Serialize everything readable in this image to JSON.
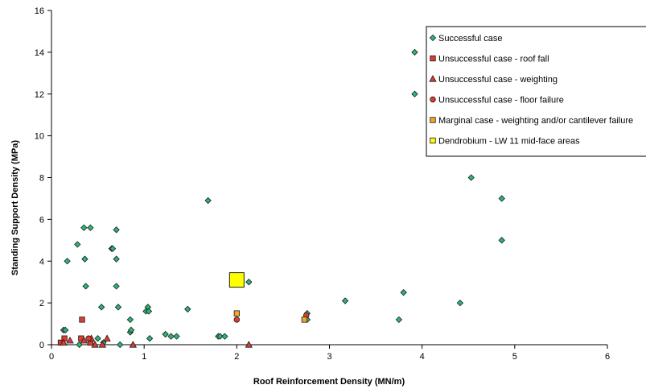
{
  "chart_data": {
    "type": "scatter",
    "title": "",
    "xlabel": "Roof Reinforcement Density (MN/m)",
    "ylabel": "Standing Support Density (MPa)",
    "xlim": [
      0,
      6
    ],
    "ylim": [
      0,
      16
    ],
    "x_ticks": [
      "0",
      "1",
      "2",
      "3",
      "4",
      "5",
      "6"
    ],
    "y_ticks": [
      "0",
      "2",
      "4",
      "6",
      "8",
      "10",
      "12",
      "14",
      "16"
    ],
    "grid": false,
    "legend_position": "top-right",
    "series": [
      {
        "name": "Successful case",
        "marker": "diamond",
        "color": "#2bb673",
        "points": [
          [
            0.13,
            0.7
          ],
          [
            0.15,
            0.7
          ],
          [
            0.17,
            4.0
          ],
          [
            0.28,
            4.8
          ],
          [
            0.3,
            0.0
          ],
          [
            0.35,
            5.6
          ],
          [
            0.36,
            4.1
          ],
          [
            0.37,
            2.8
          ],
          [
            0.42,
            5.6
          ],
          [
            0.5,
            0.3
          ],
          [
            0.54,
            1.8
          ],
          [
            0.56,
            0.1
          ],
          [
            0.65,
            4.6
          ],
          [
            0.66,
            4.6
          ],
          [
            0.7,
            5.5
          ],
          [
            0.7,
            4.1
          ],
          [
            0.7,
            2.8
          ],
          [
            0.72,
            1.8
          ],
          [
            0.74,
            0.0
          ],
          [
            0.85,
            1.2
          ],
          [
            0.85,
            0.6
          ],
          [
            0.86,
            0.7
          ],
          [
            1.02,
            1.6
          ],
          [
            1.04,
            1.8
          ],
          [
            1.05,
            1.6
          ],
          [
            1.06,
            0.3
          ],
          [
            1.23,
            0.5
          ],
          [
            1.29,
            0.4
          ],
          [
            1.35,
            0.4
          ],
          [
            1.47,
            1.7
          ],
          [
            1.69,
            6.9
          ],
          [
            1.8,
            0.4
          ],
          [
            1.82,
            0.4
          ],
          [
            1.87,
            0.4
          ],
          [
            2.13,
            3.0
          ],
          [
            2.76,
            1.5
          ],
          [
            2.76,
            1.2
          ],
          [
            3.17,
            2.1
          ],
          [
            3.75,
            1.2
          ],
          [
            3.8,
            2.5
          ],
          [
            3.92,
            14.0
          ],
          [
            3.92,
            12.0
          ],
          [
            4.41,
            2.0
          ],
          [
            4.53,
            8.0
          ],
          [
            4.86,
            7.0
          ],
          [
            4.86,
            5.0
          ]
        ]
      },
      {
        "name": "Unsuccessful case - roof fall",
        "marker": "square",
        "color": "#e03c31",
        "points": [
          [
            0.1,
            0.1
          ],
          [
            0.14,
            0.3
          ],
          [
            0.33,
            1.2
          ],
          [
            0.32,
            0.3
          ],
          [
            0.42,
            0.1
          ]
        ]
      },
      {
        "name": "Unsuccessful case - weighting",
        "marker": "triangle",
        "color": "#e03c31",
        "points": [
          [
            0.13,
            0.1
          ],
          [
            0.2,
            0.2
          ],
          [
            0.35,
            0.2
          ],
          [
            0.43,
            0.3
          ],
          [
            0.47,
            0.0
          ],
          [
            0.55,
            0.0
          ],
          [
            0.6,
            0.3
          ],
          [
            0.88,
            0.0
          ],
          [
            2.13,
            0.0
          ]
        ]
      },
      {
        "name": "Unsuccessful case - floor failure",
        "marker": "circle",
        "color": "#e03c31",
        "points": [
          [
            0.4,
            0.3
          ],
          [
            2.0,
            1.2
          ],
          [
            2.75,
            1.4
          ]
        ]
      },
      {
        "name": "Marginal case - weighting and/or cantilever failure",
        "marker": "square",
        "color": "#f5a623",
        "points": [
          [
            2.0,
            1.5
          ],
          [
            2.73,
            1.2
          ]
        ]
      },
      {
        "name": "Dendrobium - LW 11 mid-face areas",
        "marker": "square-large",
        "color": "#ffff00",
        "points": [
          [
            2.0,
            3.1
          ]
        ]
      }
    ]
  }
}
